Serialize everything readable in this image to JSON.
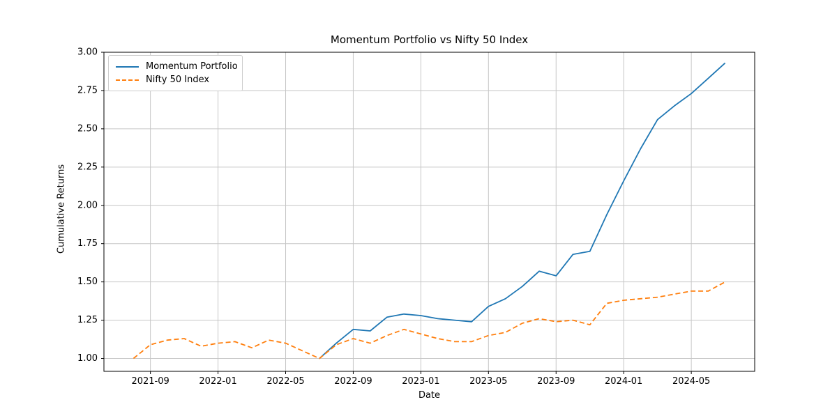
{
  "chart": {
    "title": "Momentum Portfolio vs Nifty 50 Index",
    "xlabel": "Date",
    "ylabel": "Cumulative Returns",
    "legend": {
      "series1": "Momentum Portfolio",
      "series2": "Nifty 50 Index"
    }
  },
  "colors": {
    "momentum_portfolio": "#1f77b4",
    "nifty_50_index": "#ff7f0e",
    "grid": "#c6c6c6",
    "axis": "#000000"
  },
  "chart_data": {
    "type": "line",
    "title": "Momentum Portfolio vs Nifty 50 Index",
    "xlabel": "Date",
    "ylabel": "Cumulative Returns",
    "grid": true,
    "legend_position": "upper left",
    "x": [
      "2021-08",
      "2021-09",
      "2021-10",
      "2021-11",
      "2021-12",
      "2022-01",
      "2022-02",
      "2022-03",
      "2022-04",
      "2022-05",
      "2022-06",
      "2022-07",
      "2022-08",
      "2022-09",
      "2022-10",
      "2022-11",
      "2022-12",
      "2023-01",
      "2023-02",
      "2023-03",
      "2023-04",
      "2023-05",
      "2023-06",
      "2023-07",
      "2023-08",
      "2023-09",
      "2023-10",
      "2023-11",
      "2023-12",
      "2024-01",
      "2024-02",
      "2024-03",
      "2024-04",
      "2024-05",
      "2024-06",
      "2024-07"
    ],
    "x_ticks": [
      "2021-09",
      "2022-01",
      "2022-05",
      "2022-09",
      "2023-01",
      "2023-05",
      "2023-09",
      "2024-01",
      "2024-05"
    ],
    "y_ticks": [
      1.0,
      1.25,
      1.5,
      1.75,
      2.0,
      2.25,
      2.5,
      2.75,
      3.0
    ],
    "y_tick_labels": [
      "1.00",
      "1.25",
      "1.50",
      "1.75",
      "2.00",
      "2.25",
      "2.50",
      "2.75",
      "3.00"
    ],
    "ylim": [
      0.916,
      3.0
    ],
    "xlim_index": [
      -1.75,
      36.75
    ],
    "series": [
      {
        "name": "Momentum Portfolio",
        "color": "#1f77b4",
        "style": "solid",
        "values": [
          null,
          null,
          null,
          null,
          null,
          null,
          null,
          null,
          null,
          null,
          null,
          1.0,
          1.1,
          1.19,
          1.18,
          1.27,
          1.29,
          1.28,
          1.26,
          1.25,
          1.24,
          1.34,
          1.39,
          1.47,
          1.57,
          1.54,
          1.68,
          1.7,
          1.94,
          2.16,
          2.37,
          2.56,
          2.65,
          2.73,
          2.83,
          2.93
        ]
      },
      {
        "name": "Nifty 50 Index",
        "color": "#ff7f0e",
        "style": "dashed",
        "values": [
          1.0,
          1.09,
          1.12,
          1.13,
          1.08,
          1.1,
          1.11,
          1.07,
          1.12,
          1.1,
          1.05,
          1.0,
          1.09,
          1.13,
          1.1,
          1.15,
          1.19,
          1.16,
          1.13,
          1.11,
          1.11,
          1.15,
          1.17,
          1.23,
          1.26,
          1.24,
          1.25,
          1.22,
          1.36,
          1.38,
          1.39,
          1.4,
          1.42,
          1.44,
          1.44,
          1.5
        ]
      }
    ]
  }
}
